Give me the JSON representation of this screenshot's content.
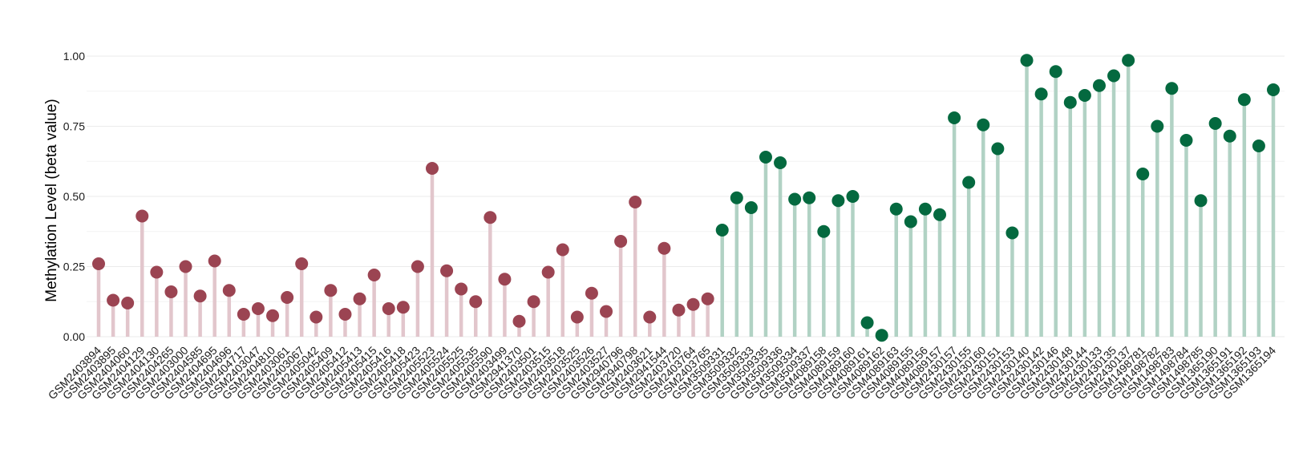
{
  "chart_data": {
    "type": "lollipop",
    "title": "",
    "xlabel": "",
    "ylabel": "Methylation Level (beta value)",
    "ylim": [
      0,
      1.0
    ],
    "yticks": [
      0.0,
      0.25,
      0.5,
      0.75,
      1.0
    ],
    "ytick_labels": [
      "0.00",
      "0.25",
      "0.50",
      "0.75",
      "1.00"
    ],
    "grid": true,
    "legend": "none",
    "group_colors": {
      "red": {
        "point": "#9b4452",
        "stem": "#e2c6cc"
      },
      "green": {
        "point": "#04693f",
        "stem": "#b1d2c4"
      }
    },
    "categories": [
      "GSM2403894",
      "GSM2403895",
      "GSM2404060",
      "GSM2404129",
      "GSM2404130",
      "GSM2404265",
      "GSM2403000",
      "GSM2404585",
      "GSM2404695",
      "GSM2404696",
      "GSM2404717",
      "GSM2403047",
      "GSM2404810",
      "GSM2403061",
      "GSM2403067",
      "GSM2405042",
      "GSM2405409",
      "GSM2405412",
      "GSM2405413",
      "GSM2405415",
      "GSM2405416",
      "GSM2405418",
      "GSM2405423",
      "GSM2405523",
      "GSM2405524",
      "GSM2405525",
      "GSM2405535",
      "GSM2405590",
      "GSM2403499",
      "GSM2941370",
      "GSM2403501",
      "GSM2403515",
      "GSM2403518",
      "GSM2403525",
      "GSM2403526",
      "GSM2403527",
      "GSM2940796",
      "GSM2940798",
      "GSM2403621",
      "GSM2941544",
      "GSM2403720",
      "GSM2403764",
      "GSM2403765",
      "GSM3509331",
      "GSM3509332",
      "GSM3509333",
      "GSM3509335",
      "GSM3509336",
      "GSM3509334",
      "GSM3509337",
      "GSM4089158",
      "GSM4089159",
      "GSM4089160",
      "GSM4089161",
      "GSM4089162",
      "GSM4089163",
      "GSM4089155",
      "GSM4089156",
      "GSM4089157",
      "GSM2430157",
      "GSM2430155",
      "GSM2430160",
      "GSM2430151",
      "GSM2430153",
      "GSM2430140",
      "GSM2430142",
      "GSM2430146",
      "GSM2430148",
      "GSM2430144",
      "GSM2430133",
      "GSM2430135",
      "GSM2430137",
      "GSM1498781",
      "GSM1498782",
      "GSM1498783",
      "GSM1498784",
      "GSM1498785",
      "GSM1365190",
      "GSM1365191",
      "GSM1365192",
      "GSM1365193",
      "GSM1365194"
    ],
    "groups": [
      "red",
      "red",
      "red",
      "red",
      "red",
      "red",
      "red",
      "red",
      "red",
      "red",
      "red",
      "red",
      "red",
      "red",
      "red",
      "red",
      "red",
      "red",
      "red",
      "red",
      "red",
      "red",
      "red",
      "red",
      "red",
      "red",
      "red",
      "red",
      "red",
      "red",
      "red",
      "red",
      "red",
      "red",
      "red",
      "red",
      "red",
      "red",
      "red",
      "red",
      "red",
      "red",
      "red",
      "green",
      "green",
      "green",
      "green",
      "green",
      "green",
      "green",
      "green",
      "green",
      "green",
      "green",
      "green",
      "green",
      "green",
      "green",
      "green",
      "green",
      "green",
      "green",
      "green",
      "green",
      "green",
      "green",
      "green",
      "green",
      "green",
      "green",
      "green",
      "green",
      "green",
      "green",
      "green",
      "green",
      "green",
      "green",
      "green",
      "green",
      "green",
      "green"
    ],
    "values": [
      0.26,
      0.13,
      0.12,
      0.43,
      0.23,
      0.16,
      0.25,
      0.145,
      0.27,
      0.165,
      0.08,
      0.1,
      0.075,
      0.14,
      0.26,
      0.07,
      0.165,
      0.08,
      0.135,
      0.22,
      0.1,
      0.105,
      0.25,
      0.6,
      0.235,
      0.17,
      0.125,
      0.425,
      0.205,
      0.055,
      0.125,
      0.23,
      0.31,
      0.07,
      0.155,
      0.09,
      0.34,
      0.48,
      0.07,
      0.315,
      0.095,
      0.115,
      0.135,
      0.38,
      0.495,
      0.46,
      0.64,
      0.62,
      0.49,
      0.495,
      0.375,
      0.485,
      0.5,
      0.05,
      0.005,
      0.455,
      0.41,
      0.455,
      0.435,
      0.78,
      0.55,
      0.755,
      0.67,
      0.37,
      0.985,
      0.865,
      0.945,
      0.835,
      0.86,
      0.895,
      0.93,
      0.985,
      0.58,
      0.75,
      0.885,
      0.7,
      0.485,
      0.76,
      0.715,
      0.845,
      0.68,
      0.88
    ]
  }
}
